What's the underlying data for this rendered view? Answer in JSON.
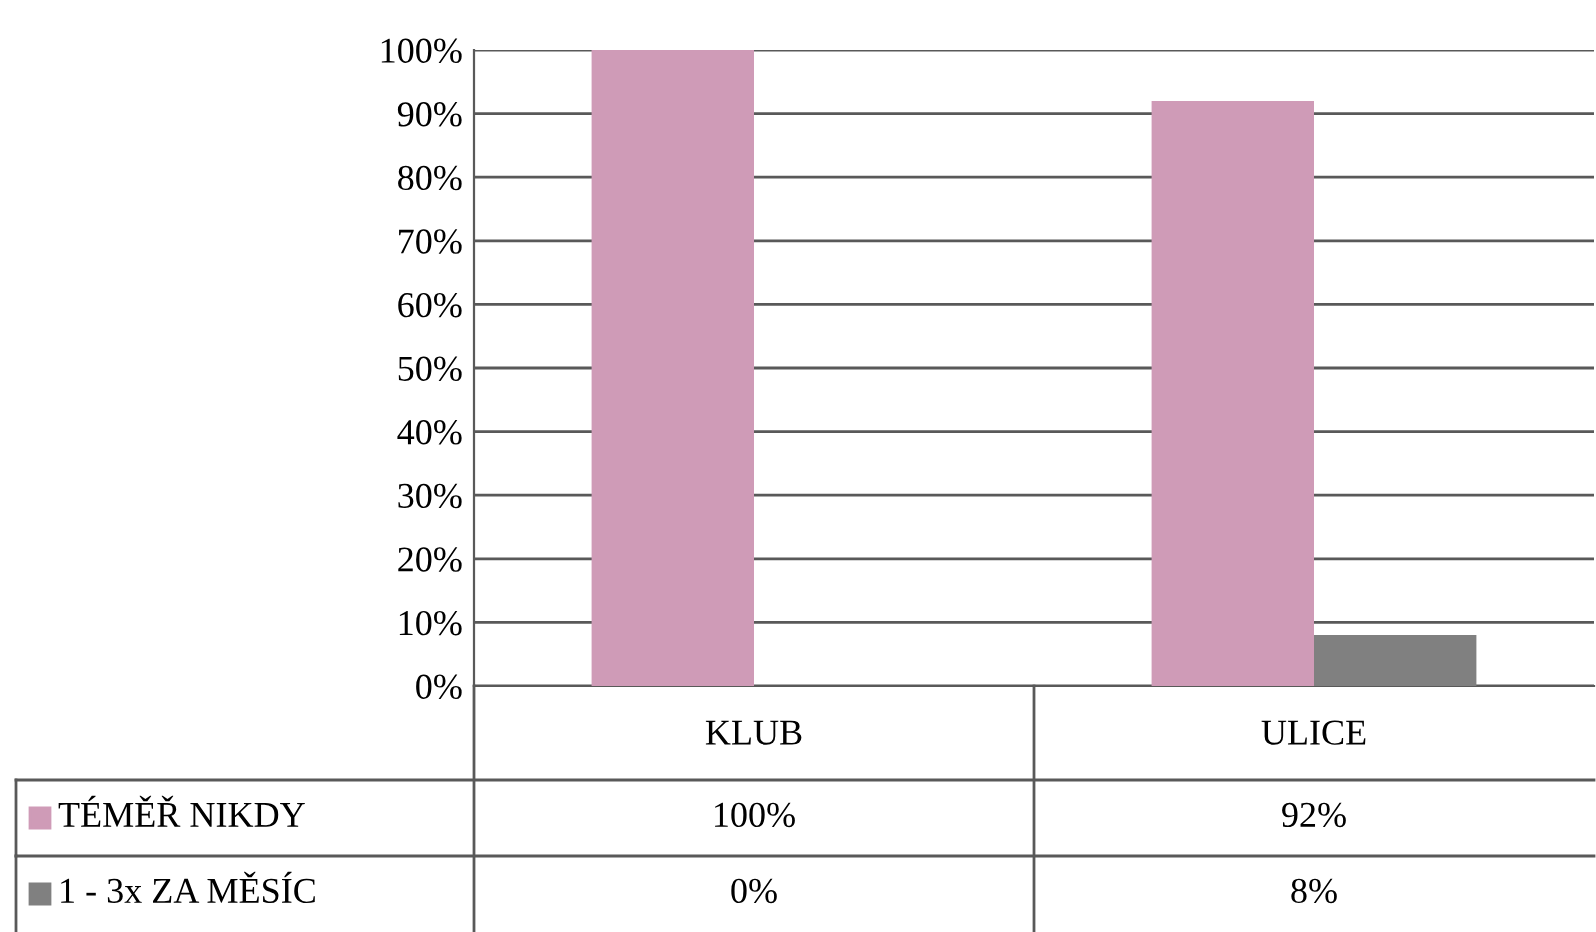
{
  "chart_data": {
    "type": "bar",
    "categories": [
      "KLUB",
      "ULICE"
    ],
    "series": [
      {
        "name": "TÉMĚŘ NIKDY",
        "color": "#cf9bb7",
        "values": [
          100,
          92
        ],
        "value_labels": [
          "100%",
          "92%"
        ]
      },
      {
        "name": "1 - 3x ZA MĚSÍC",
        "color": "#808080",
        "values": [
          0,
          8
        ],
        "value_labels": [
          "0%",
          "8%"
        ]
      }
    ],
    "ylim": [
      0,
      100
    ],
    "yticks": [
      {
        "value": 0,
        "label": "0%"
      },
      {
        "value": 10,
        "label": "10%"
      },
      {
        "value": 20,
        "label": "20%"
      },
      {
        "value": 30,
        "label": "30%"
      },
      {
        "value": 40,
        "label": "40%"
      },
      {
        "value": 50,
        "label": "50%"
      },
      {
        "value": 60,
        "label": "60%"
      },
      {
        "value": 70,
        "label": "70%"
      },
      {
        "value": 80,
        "label": "80%"
      },
      {
        "value": 90,
        "label": "90%"
      },
      {
        "value": 100,
        "label": "100%"
      }
    ],
    "grid": "y",
    "legend": "bottom left"
  }
}
